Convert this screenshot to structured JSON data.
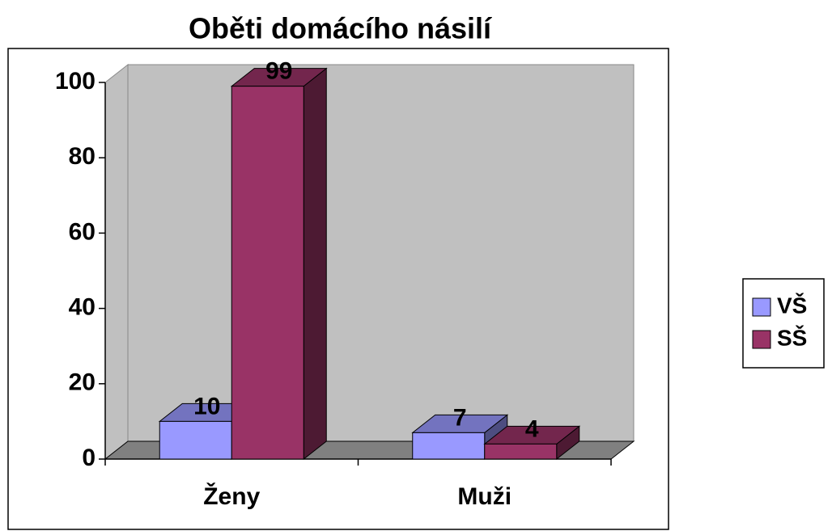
{
  "chart_data": {
    "type": "bar3d",
    "title": "Oběti domácího násilí",
    "categories": [
      "Ženy",
      "Muži"
    ],
    "series": [
      {
        "name": "VŠ",
        "color": "#9999ff",
        "values": [
          10,
          7
        ]
      },
      {
        "name": "SŠ",
        "color": "#993366",
        "values": [
          99,
          4
        ]
      }
    ],
    "ylim": [
      0,
      100
    ],
    "yticks": [
      0,
      20,
      40,
      60,
      80,
      100
    ],
    "legend": "right"
  }
}
